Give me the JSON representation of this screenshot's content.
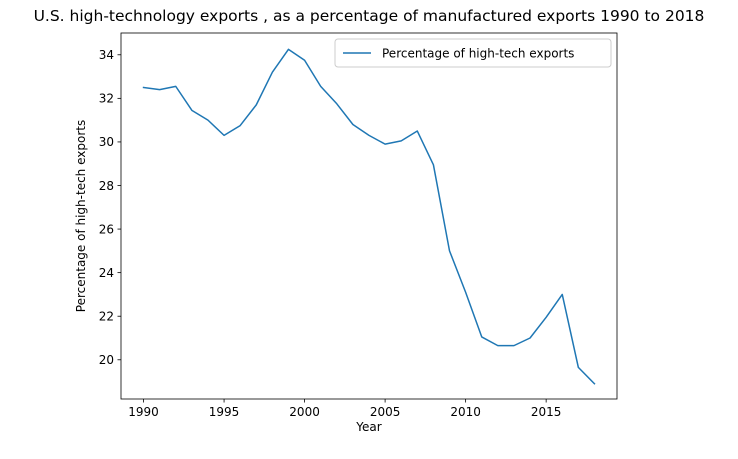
{
  "chart_data": {
    "type": "line",
    "title": "U.S. high-technology exports , as a percentage of manufactured exports 1990 to 2018",
    "xlabel": "Year",
    "ylabel": "Percentage of high-tech exports",
    "xlim": [
      1988.6,
      2019.4
    ],
    "ylim": [
      18.2,
      35.0
    ],
    "xticks": [
      1990,
      1995,
      2000,
      2005,
      2010,
      2015
    ],
    "yticks": [
      20,
      22,
      24,
      26,
      28,
      30,
      32,
      34
    ],
    "grid": false,
    "legend_position": "upper right",
    "colors": {
      "series": "#1f77b4",
      "axes": "#000000",
      "legend_border": "#cccccc"
    },
    "series": [
      {
        "name": "Percentage of high-tech exports",
        "x": [
          1990,
          1991,
          1992,
          1993,
          1994,
          1995,
          1996,
          1997,
          1998,
          1999,
          2000,
          2001,
          2002,
          2003,
          2004,
          2005,
          2006,
          2007,
          2008,
          2009,
          2010,
          2011,
          2012,
          2013,
          2014,
          2015,
          2016,
          2017,
          2018
        ],
        "y": [
          32.5,
          32.4,
          32.55,
          31.45,
          31.0,
          30.3,
          30.75,
          31.7,
          33.2,
          34.25,
          33.75,
          32.55,
          31.75,
          30.8,
          30.3,
          29.9,
          30.05,
          30.5,
          28.95,
          25.0,
          23.1,
          21.05,
          20.65,
          20.65,
          21.0,
          21.95,
          23.0,
          19.65,
          18.9
        ]
      }
    ]
  }
}
